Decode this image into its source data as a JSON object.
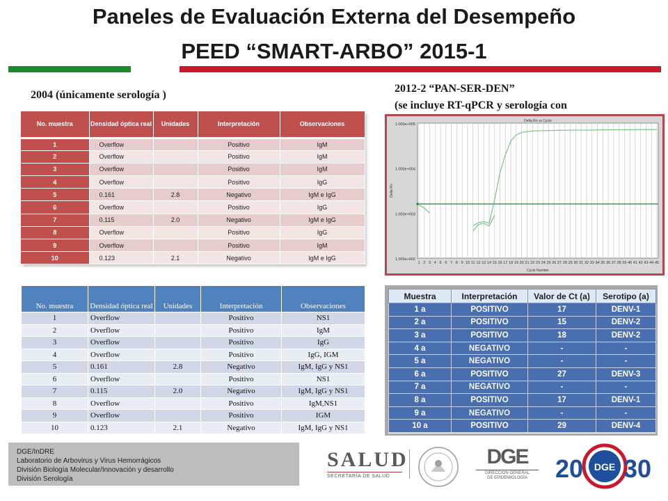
{
  "title": {
    "line1": "Paneles de Evaluación Externa del Desempeño",
    "line2": "PEED “SMART-ARBO” 2015-1"
  },
  "colors": {
    "green_bar": "#1b8a2e",
    "red_bar": "#c9182b",
    "table1_header": "#c0504d",
    "table2_header": "#4f81bd",
    "table3_cell": "#4a6fb0"
  },
  "section_left": "2004 (únicamente serología )",
  "section_right": {
    "line1": "2012-2 “PAN-SER-DEN”",
    "line2": "(se incluye RT-qPCR y serología con"
  },
  "table1": {
    "headers": [
      "No. muestra",
      "Densidad óptica real",
      "Unidades",
      "Interpretación",
      "Observaciones"
    ],
    "rows": [
      [
        "1",
        "Overflow",
        "",
        "Positivo",
        "IgM"
      ],
      [
        "2",
        "Overflow",
        "",
        "Positivo",
        "IgM"
      ],
      [
        "3",
        "Overflow",
        "",
        "Positivo",
        "IgM"
      ],
      [
        "4",
        "Overflow",
        "",
        "Positivo",
        "IgG"
      ],
      [
        "5",
        "0.161",
        "2.8",
        "Negativo",
        "IgM e IgG"
      ],
      [
        "6",
        "Overflow",
        "",
        "Positivo",
        "IgG"
      ],
      [
        "7",
        "0.115",
        "2.0",
        "Negativo",
        "IgM e IgG"
      ],
      [
        "8",
        "Overflow",
        "",
        "Positivo",
        "IgG"
      ],
      [
        "9",
        "Overflow",
        "",
        "Positivo",
        "IgM"
      ],
      [
        "10",
        "0.123",
        "2.1",
        "Negativo",
        "IgM e IgG"
      ]
    ]
  },
  "table2": {
    "headers": [
      "No. muestra",
      "Densidad óptica real",
      "Unidades",
      "Interpretación",
      "Observaciones"
    ],
    "rows": [
      [
        "1",
        "Overflow",
        "",
        "Positivo",
        "NS1"
      ],
      [
        "2",
        "Overflow",
        "",
        "Positivo",
        "IgM"
      ],
      [
        "3",
        "Overflow",
        "",
        "Positivo",
        "IgG"
      ],
      [
        "4",
        "Overflow",
        "",
        "Positivo",
        "IgG, IGM"
      ],
      [
        "5",
        "0.161",
        "2.8",
        "Negativo",
        "IgM, IgG y NS1"
      ],
      [
        "6",
        "Overflow",
        "",
        "Positivo",
        "NS1"
      ],
      [
        "7",
        "0.115",
        "2.0",
        "Negativo",
        "IgM, IgG y NS1"
      ],
      [
        "8",
        "Overflow",
        "",
        "Positivo",
        "IgM,NS1"
      ],
      [
        "9",
        "Overflow",
        "",
        "Positivo",
        "IGM"
      ],
      [
        "10",
        "0.123",
        "2.1",
        "Negativo",
        "IgM, IgG y NS1"
      ]
    ]
  },
  "table3": {
    "headers": [
      "Muestra",
      "Interpretación",
      "Valor de Ct (a)",
      "Serotipo (a)"
    ],
    "rows": [
      [
        "1 a",
        "POSITIVO",
        "17",
        "DENV-1"
      ],
      [
        "2 a",
        "POSITIVO",
        "15",
        "DENV-2"
      ],
      [
        "3 a",
        "POSITIVO",
        "18",
        "DENV-2"
      ],
      [
        "4 a",
        "NEGATIVO",
        "-",
        "-"
      ],
      [
        "5 a",
        "NEGATIVO",
        "-",
        "-"
      ],
      [
        "6 a",
        "POSITIVO",
        "27",
        "DENV-3"
      ],
      [
        "7 a",
        "NEGATIVO",
        "-",
        "-"
      ],
      [
        "8 a",
        "POSITIVO",
        "17",
        "DENV-1"
      ],
      [
        "9 a",
        "NEGATIVO",
        "-",
        "-"
      ],
      [
        "10 a",
        "POSITIVO",
        "29",
        "DENV-4"
      ]
    ]
  },
  "chart_data": {
    "type": "line",
    "title": "Delta Rn vs Cycle",
    "xlabel": "Cycle Number",
    "ylabel": "Delta Rn",
    "y_scale": "log",
    "y_ticks": [
      "1.000e+005",
      "1.000e+004",
      "1.000e+003",
      "1.000e+002"
    ],
    "x_ticks": [
      "1",
      "2",
      "3",
      "4",
      "5",
      "6",
      "7",
      "8",
      "9",
      "10",
      "11",
      "12",
      "13",
      "14",
      "15",
      "16",
      "17",
      "18",
      "19",
      "20",
      "21",
      "22",
      "23",
      "24",
      "25",
      "26",
      "27",
      "28",
      "29",
      "30",
      "31",
      "32",
      "33",
      "34",
      "35",
      "36",
      "37",
      "38",
      "39",
      "40",
      "41",
      "42",
      "43",
      "44",
      "45"
    ],
    "ylim": [
      100,
      100000
    ],
    "threshold": 1600,
    "series": [
      {
        "x": [
          1,
          2,
          3,
          4,
          5,
          6,
          7,
          8,
          9,
          10,
          11,
          12,
          13,
          14,
          15,
          16,
          17,
          18,
          19,
          20,
          22,
          24,
          26,
          28,
          30,
          32,
          34,
          36,
          38,
          40,
          42,
          44,
          45
        ],
        "values": [
          1500,
          1300,
          1000,
          null,
          null,
          null,
          null,
          null,
          null,
          null,
          null,
          null,
          null,
          null,
          null,
          null,
          null,
          null,
          null,
          null,
          null,
          null,
          null,
          null,
          null,
          null,
          null,
          null,
          null,
          null,
          null,
          null,
          null
        ]
      },
      {
        "x": [
          11,
          12,
          13,
          14,
          15,
          16,
          17,
          18,
          19,
          20,
          21,
          22,
          24,
          26,
          28,
          30,
          32,
          34,
          36,
          38,
          40,
          42,
          44,
          45
        ],
        "values": [
          520,
          620,
          650,
          600,
          2000,
          8000,
          20000,
          40000,
          55000,
          62000,
          65000,
          67000,
          68000,
          69000,
          69500,
          70000,
          70000,
          70500,
          71000,
          71000,
          71500,
          72000,
          72000,
          72000
        ]
      },
      {
        "x": [
          11,
          12,
          13,
          14,
          15
        ],
        "values": [
          400,
          560,
          600,
          520,
          900
        ]
      }
    ]
  },
  "footer": {
    "lines": [
      "DGE/InDRE",
      "Laboratorio de Arbovirus y Virus Hemorrágicos",
      "División Biología Molecular/Innovación y desarrollo",
      "División Serología"
    ]
  },
  "logos": {
    "salud_word": "SALUD",
    "salud_sub": "SECRETARÍA DE SALUD",
    "dge_word": "DGE",
    "dge_sub1": "DIRECCIÓN GENERAL",
    "dge_sub2": "DE EPIDEMIOLOGÍA",
    "sinave_left": "20",
    "sinave_right": "30",
    "sinave_center": "DGE"
  }
}
